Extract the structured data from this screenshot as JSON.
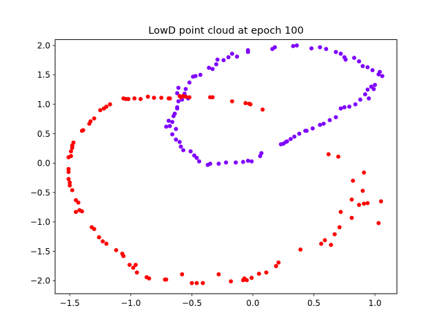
{
  "chart_data": {
    "type": "scatter",
    "title": "LowD point cloud at epoch 100",
    "xlabel": "",
    "ylabel": "",
    "xlim": [
      -1.62,
      1.18
    ],
    "ylim": [
      -2.22,
      2.1
    ],
    "xticks": [
      -1.5,
      -1.0,
      -0.5,
      0.0,
      0.5,
      1.0
    ],
    "xtick_labels": [
      "−1.5",
      "−1.0",
      "−0.5",
      "0.0",
      "0.5",
      "1.0"
    ],
    "yticks": [
      -2.0,
      -1.5,
      -1.0,
      -0.5,
      0.0,
      0.5,
      1.0,
      1.5,
      2.0
    ],
    "ytick_labels": [
      "−2.0",
      "−1.5",
      "−1.0",
      "−0.5",
      "0.0",
      "0.5",
      "1.0",
      "1.5",
      "2.0"
    ],
    "grid": false,
    "series": [
      {
        "color": "#7f00ff",
        "points": [
          [
            -0.68,
            0.63
          ],
          [
            -0.71,
            0.62
          ],
          [
            -0.69,
            0.72
          ],
          [
            -0.65,
            0.8
          ],
          [
            -0.62,
            0.95
          ],
          [
            -0.61,
            1.05
          ],
          [
            -0.62,
            1.19
          ],
          [
            -0.61,
            1.28
          ],
          [
            -0.55,
            1.26
          ],
          [
            -0.56,
            1.18
          ],
          [
            -0.52,
            1.37
          ],
          [
            -0.49,
            1.47
          ],
          [
            -0.47,
            1.48
          ],
          [
            -0.43,
            1.5
          ],
          [
            -0.36,
            1.62
          ],
          [
            -0.33,
            1.6
          ],
          [
            -0.3,
            1.68
          ],
          [
            -0.29,
            1.76
          ],
          [
            -0.24,
            1.75
          ],
          [
            -0.2,
            1.8
          ],
          [
            -0.17,
            1.86
          ],
          [
            -0.13,
            1.81
          ],
          [
            -0.04,
            1.89
          ],
          [
            -0.04,
            1.92
          ],
          [
            0.16,
            1.94
          ],
          [
            0.18,
            1.97
          ],
          [
            0.33,
            1.99
          ],
          [
            0.36,
            2.0
          ],
          [
            0.48,
            1.95
          ],
          [
            0.55,
            1.97
          ],
          [
            0.6,
            1.94
          ],
          [
            0.68,
            1.89
          ],
          [
            0.72,
            1.86
          ],
          [
            0.75,
            1.8
          ],
          [
            0.76,
            1.76
          ],
          [
            0.83,
            1.79
          ],
          [
            0.87,
            1.73
          ],
          [
            0.9,
            1.65
          ],
          [
            0.94,
            1.63
          ],
          [
            0.98,
            1.58
          ],
          [
            1.03,
            1.51
          ],
          [
            1.04,
            1.55
          ],
          [
            1.06,
            1.48
          ],
          [
            1.0,
            1.33
          ],
          [
            0.97,
            1.3
          ],
          [
            0.99,
            1.26
          ],
          [
            0.94,
            1.25
          ],
          [
            0.92,
            1.17
          ],
          [
            0.95,
            1.1
          ],
          [
            0.88,
            1.08
          ],
          [
            0.84,
            1.0
          ],
          [
            0.79,
            0.96
          ],
          [
            0.75,
            0.95
          ],
          [
            0.72,
            0.93
          ],
          [
            0.68,
            0.78
          ],
          [
            0.63,
            0.73
          ],
          [
            0.58,
            0.67
          ],
          [
            0.55,
            0.65
          ],
          [
            0.49,
            0.59
          ],
          [
            0.43,
            0.55
          ],
          [
            0.38,
            0.5
          ],
          [
            0.34,
            0.45
          ],
          [
            0.31,
            0.41
          ],
          [
            0.28,
            0.37
          ],
          [
            0.25,
            0.33
          ],
          [
            0.23,
            0.32
          ],
          [
            0.07,
            0.17
          ],
          [
            0.06,
            0.12
          ],
          [
            -0.01,
            0.03
          ],
          [
            -0.04,
            0.04
          ],
          [
            -0.08,
            0.02
          ],
          [
            -0.14,
            0.01
          ],
          [
            -0.22,
            0.01
          ],
          [
            -0.28,
            -0.01
          ],
          [
            -0.35,
            -0.01
          ],
          [
            -0.37,
            -0.03
          ],
          [
            -0.44,
            0.03
          ],
          [
            -0.46,
            0.09
          ],
          [
            -0.48,
            0.13
          ],
          [
            -0.51,
            0.2
          ],
          [
            -0.57,
            0.22
          ],
          [
            -0.59,
            0.28
          ],
          [
            -0.6,
            0.36
          ],
          [
            -0.63,
            0.4
          ],
          [
            -0.66,
            0.49
          ],
          [
            -0.63,
            0.58
          ],
          [
            -0.66,
            0.7
          ],
          [
            -0.64,
            0.84
          ],
          [
            -0.62,
            0.93
          ],
          [
            -0.53,
            1.1
          ],
          [
            -0.58,
            1.08
          ],
          [
            0.44,
            0.55
          ],
          [
            0.27,
            0.36
          ]
        ]
      },
      {
        "color": "#ff0000",
        "points": [
          [
            -1.47,
            0.35
          ],
          [
            -1.48,
            0.3
          ],
          [
            -1.48,
            0.26
          ],
          [
            -1.49,
            0.2
          ],
          [
            -1.49,
            0.12
          ],
          [
            -1.51,
            0.1
          ],
          [
            -1.51,
            -0.1
          ],
          [
            -1.51,
            -0.15
          ],
          [
            -1.51,
            -0.27
          ],
          [
            -1.5,
            -0.33
          ],
          [
            -1.5,
            -0.38
          ],
          [
            -1.48,
            -0.46
          ],
          [
            -1.45,
            -0.63
          ],
          [
            -1.43,
            -0.67
          ],
          [
            -1.42,
            -0.8
          ],
          [
            -1.4,
            -0.82
          ],
          [
            -1.32,
            -1.09
          ],
          [
            -1.3,
            -1.12
          ],
          [
            -1.26,
            -1.26
          ],
          [
            -1.23,
            -1.33
          ],
          [
            -1.2,
            -1.37
          ],
          [
            -1.12,
            -1.48
          ],
          [
            -1.07,
            -1.54
          ],
          [
            -1.06,
            -1.58
          ],
          [
            -1.01,
            -1.73
          ],
          [
            -0.96,
            -1.73
          ],
          [
            -0.95,
            -1.86
          ],
          [
            -0.98,
            -1.78
          ],
          [
            -0.87,
            -1.94
          ],
          [
            -0.85,
            -1.96
          ],
          [
            -0.72,
            -1.98
          ],
          [
            -0.71,
            -1.98
          ],
          [
            -0.58,
            -1.89
          ],
          [
            -0.5,
            -2.04
          ],
          [
            -0.46,
            -2.04
          ],
          [
            -0.41,
            -2.04
          ],
          [
            -0.28,
            -1.89
          ],
          [
            -0.18,
            -2.01
          ],
          [
            -0.08,
            -1.99
          ],
          [
            -0.05,
            -1.99
          ],
          [
            -0.07,
            -1.96
          ],
          [
            -0.01,
            -1.95
          ],
          [
            0.05,
            -1.88
          ],
          [
            0.11,
            -1.86
          ],
          [
            0.19,
            -1.75
          ],
          [
            0.21,
            -1.69
          ],
          [
            0.39,
            -1.47
          ],
          [
            0.56,
            -1.37
          ],
          [
            0.59,
            -1.31
          ],
          [
            0.64,
            -1.39
          ],
          [
            0.67,
            -1.21
          ],
          [
            0.71,
            -1.09
          ],
          [
            0.72,
            -0.83
          ],
          [
            0.81,
            -0.62
          ],
          [
            0.81,
            -0.93
          ],
          [
            0.82,
            -0.3
          ],
          [
            0.87,
            -0.71
          ],
          [
            0.9,
            -0.47
          ],
          [
            0.91,
            -0.69
          ],
          [
            0.91,
            -0.16
          ],
          [
            0.94,
            -0.68
          ],
          [
            1.03,
            -1.02
          ],
          [
            1.05,
            -0.65
          ],
          [
            0.62,
            0.15
          ],
          [
            0.7,
            0.11
          ],
          [
            -1.45,
            -0.83
          ],
          [
            -1.4,
            0.55
          ],
          [
            -1.39,
            0.56
          ],
          [
            -1.34,
            0.67
          ],
          [
            -1.33,
            0.71
          ],
          [
            -1.3,
            0.76
          ],
          [
            -1.25,
            0.9
          ],
          [
            -1.22,
            0.93
          ],
          [
            -1.2,
            0.96
          ],
          [
            -1.17,
            1.0
          ],
          [
            -1.06,
            1.1
          ],
          [
            -1.04,
            1.09
          ],
          [
            -1.02,
            1.09
          ],
          [
            -0.97,
            1.1
          ],
          [
            -0.92,
            1.09
          ],
          [
            -0.86,
            1.13
          ],
          [
            -0.81,
            1.11
          ],
          [
            -0.75,
            1.11
          ],
          [
            -0.69,
            1.1
          ],
          [
            -0.68,
            1.1
          ],
          [
            -0.6,
            1.14
          ],
          [
            -0.57,
            1.14
          ],
          [
            -0.55,
            1.13
          ],
          [
            -0.52,
            1.12
          ],
          [
            -0.35,
            1.12
          ],
          [
            -0.33,
            1.12
          ],
          [
            -0.17,
            1.05
          ],
          [
            -0.06,
            1.02
          ],
          [
            -0.03,
            1.01
          ],
          [
            -0.02,
            1.0
          ],
          [
            0.08,
            0.91
          ],
          [
            -0.59,
            1.12
          ]
        ]
      }
    ]
  }
}
